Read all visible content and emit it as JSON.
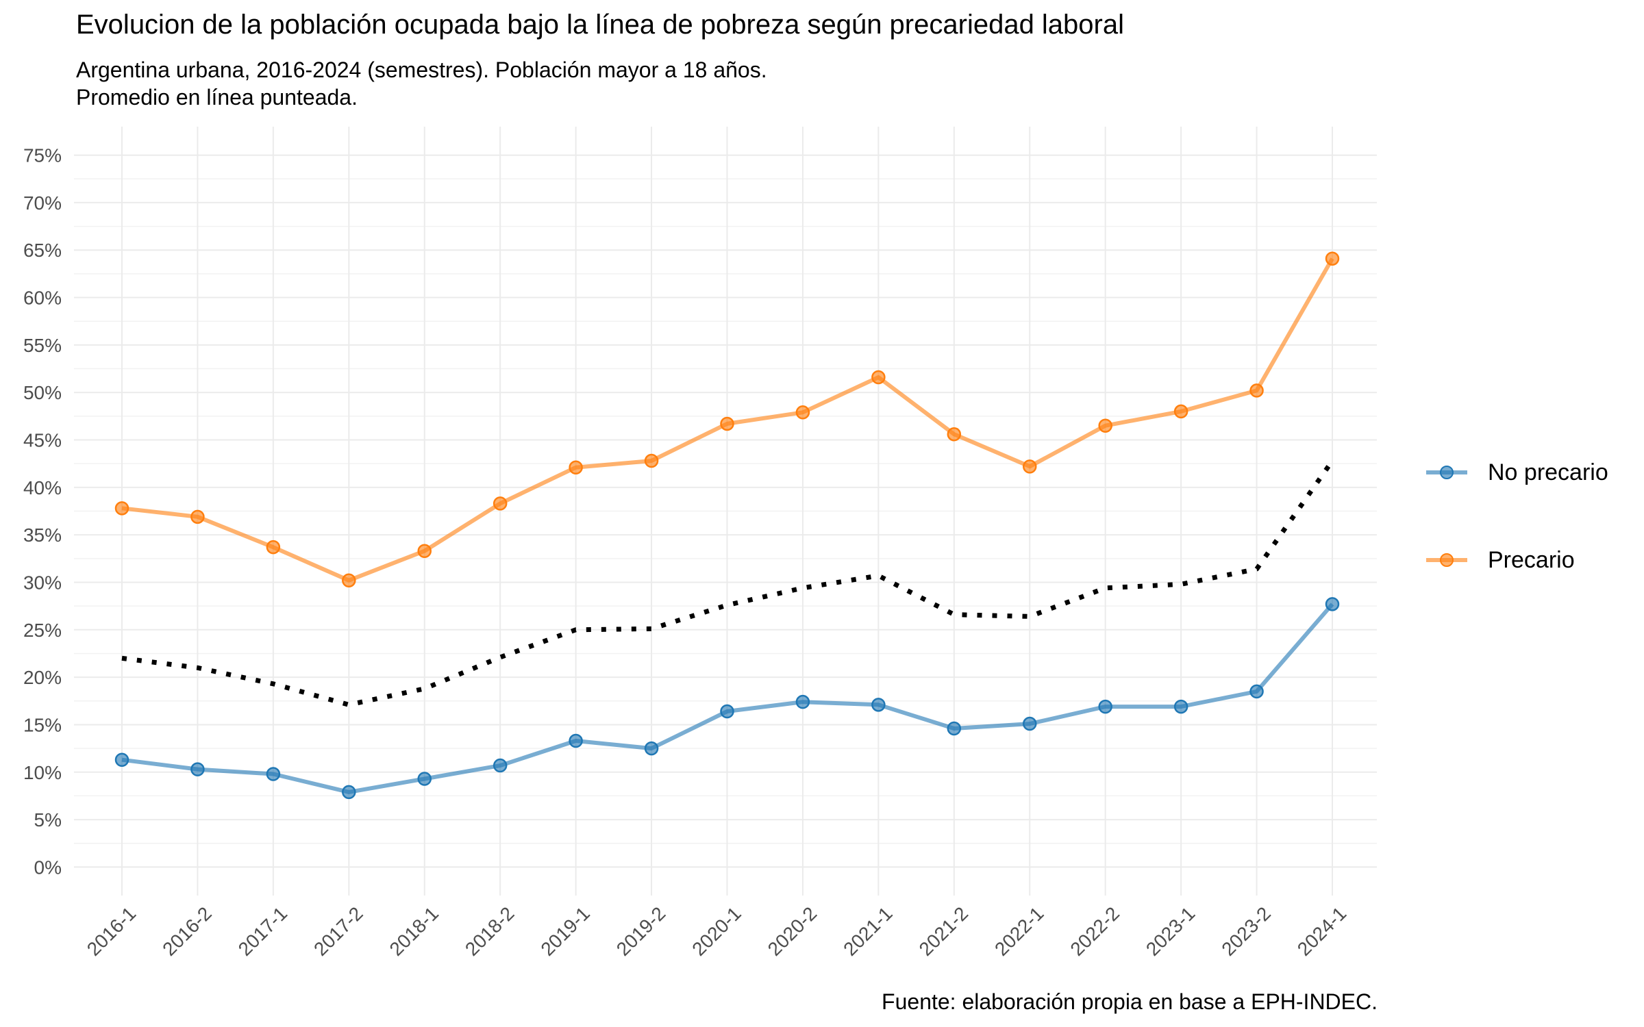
{
  "title": "Evolucion de la población ocupada bajo la línea de pobreza según precariedad laboral",
  "subtitle_line1": "Argentina urbana, 2016-2024 (semestres). Población mayor a 18 años.",
  "subtitle_line2": "Promedio en línea punteada.",
  "caption": "Fuente: elaboración propia en base a EPH-INDEC.",
  "chart_data": {
    "type": "line",
    "title": "Evolucion de la población ocupada bajo la línea de pobreza según precariedad laboral",
    "subtitle": "Argentina urbana, 2016-2024 (semestres). Población mayor a 18 años. Promedio en línea punteada.",
    "xlabel": "",
    "ylabel": "",
    "ylim": [
      -3,
      78
    ],
    "y_ticks": [
      0,
      5,
      10,
      15,
      20,
      25,
      30,
      35,
      40,
      45,
      50,
      55,
      60,
      65,
      70,
      75
    ],
    "y_tick_suffix": "%",
    "grid": true,
    "legend_position": "right",
    "categories": [
      "2016-1",
      "2016-2",
      "2017-1",
      "2017-2",
      "2018-1",
      "2018-2",
      "2019-1",
      "2019-2",
      "2020-1",
      "2020-2",
      "2021-1",
      "2021-2",
      "2022-1",
      "2022-2",
      "2023-1",
      "2023-2",
      "2024-1"
    ],
    "series": [
      {
        "name": "No precario",
        "color": "#1f77b4",
        "style": "solid-with-points",
        "values": [
          11.3,
          10.3,
          9.8,
          7.9,
          9.3,
          10.7,
          13.3,
          12.5,
          16.4,
          17.4,
          17.1,
          14.6,
          15.1,
          16.9,
          16.9,
          18.5,
          27.7
        ]
      },
      {
        "name": "Precario",
        "color": "#ff7f0e",
        "style": "solid-with-points",
        "values": [
          37.8,
          36.9,
          33.7,
          30.2,
          33.3,
          38.3,
          42.1,
          42.8,
          46.7,
          47.9,
          51.6,
          45.6,
          42.2,
          46.5,
          48.0,
          50.2,
          64.1
        ]
      },
      {
        "color": "#000000",
        "style": "dotted",
        "values": [
          22.0,
          21.0,
          19.3,
          17.1,
          18.8,
          22.1,
          25.0,
          25.1,
          27.6,
          29.4,
          30.7,
          26.6,
          26.4,
          29.4,
          29.8,
          31.4,
          42.8
        ]
      }
    ]
  }
}
